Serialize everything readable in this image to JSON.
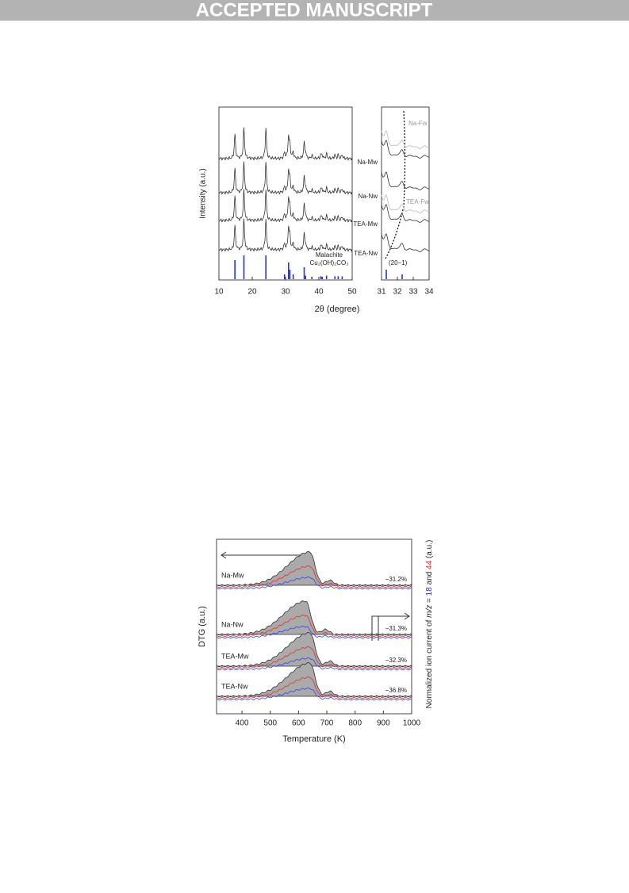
{
  "header": {
    "banner": "ACCEPTED MANUSCRIPT"
  },
  "figure1": {
    "y_label": "Intensity (a.u.)",
    "x_label": "2θ (degree)",
    "samples": [
      "Na-Mw",
      "Na-Nw",
      "TEA-Mw",
      "TEA-Nw"
    ],
    "inset_samples": [
      "Na-Fw",
      "TEA-Fw"
    ],
    "reference_name": "Malachite",
    "reference_formula": "Cu₂(OH)₂CO₃",
    "reflection": "(20−1)",
    "main_xlim": [
      10,
      50
    ],
    "main_xticks": [
      10,
      20,
      30,
      40,
      50
    ],
    "inset_xlim": [
      31,
      34
    ],
    "inset_xticks": [
      31,
      32,
      33,
      34
    ],
    "reference_peaks": [
      14.8,
      17.5,
      24.1,
      29.7,
      30.9,
      31.3,
      32.3,
      35.6,
      36.0,
      37.9,
      40.6,
      41.0,
      42.3,
      44.8,
      45.8,
      47.0
    ],
    "reference_intensities": [
      80,
      100,
      100,
      20,
      70,
      40,
      20,
      50,
      15,
      10,
      12,
      10,
      15,
      12,
      12,
      12
    ]
  },
  "figure2": {
    "y_label": "DTG (a.u.)",
    "x_label": "Temperature (K)",
    "y2_label_parts": [
      "Normalized ion current of ",
      "m/z",
      " = ",
      "18",
      " and ",
      "44",
      " (a.u.)"
    ],
    "xlim": [
      310,
      1000
    ],
    "xticks": [
      400,
      500,
      600,
      700,
      800,
      900,
      1000
    ],
    "samples": [
      {
        "name": "Na-Mw",
        "mass_loss": "−31.2%",
        "peak_temperature": 640
      },
      {
        "name": "Na-Nw",
        "mass_loss": "−31.3%",
        "peak_temperature": 625
      },
      {
        "name": "TEA-Mw",
        "mass_loss": "−32.3%",
        "peak_temperature": 640
      },
      {
        "name": "TEA-Nw",
        "mass_loss": "−36.8%",
        "peak_temperature": 640
      }
    ]
  }
}
